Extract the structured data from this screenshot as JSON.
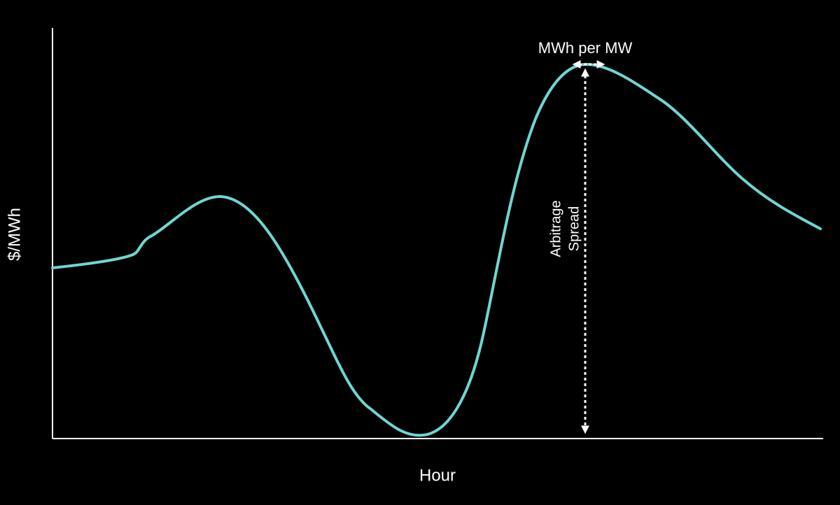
{
  "axes": {
    "x_label": "Hour",
    "y_label": "$/MWh"
  },
  "annotations": {
    "width_label": "MWh per MW",
    "spread_label": [
      "Arbitrage",
      "Spread"
    ]
  }
}
